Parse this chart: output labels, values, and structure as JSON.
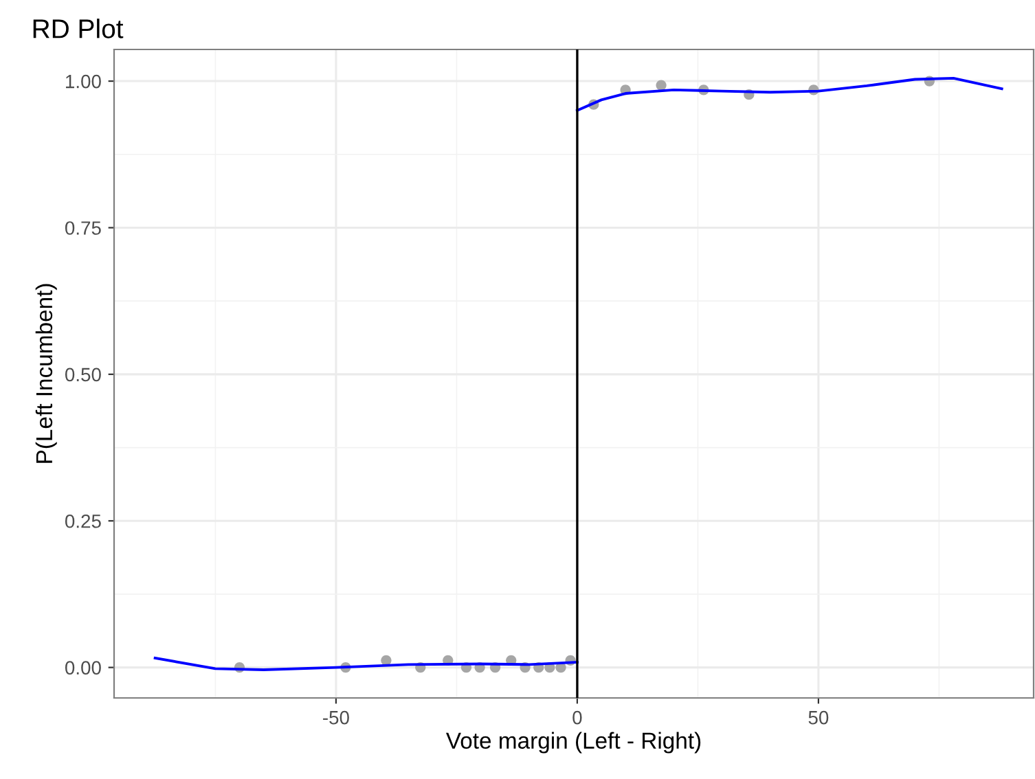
{
  "chart_data": {
    "type": "scatter",
    "title": "RD Plot",
    "xlabel": "Vote margin (Left - Right)",
    "ylabel": "P(Left Incumbent)",
    "xlim": [
      -96,
      94.6
    ],
    "ylim": [
      -0.052,
      1.054
    ],
    "xticks": [
      {
        "value": -75,
        "label": null
      },
      -50,
      {
        "value": -25,
        "label": null
      },
      0,
      {
        "value": 25,
        "label": null
      },
      50,
      {
        "value": 75,
        "label": null
      }
    ],
    "yticks": [
      {
        "value": 0,
        "label": "0.00"
      },
      {
        "value": 0.125,
        "label": null
      },
      {
        "value": 0.25,
        "label": "0.25"
      },
      {
        "value": 0.375,
        "label": null
      },
      {
        "value": 0.5,
        "label": "0.50"
      },
      {
        "value": 0.625,
        "label": null
      },
      {
        "value": 0.75,
        "label": "0.75"
      },
      {
        "value": 0.875,
        "label": null
      },
      {
        "value": 1,
        "label": "1.00"
      }
    ],
    "grid": true,
    "marker": "circle",
    "ref_lines": [
      {
        "axis": "x",
        "value": 0,
        "color": "#000000"
      }
    ],
    "series": [
      {
        "color": "#a6a6a6",
        "x": [
          -70,
          -48,
          -39.6,
          -32.5,
          -26.8,
          -23,
          -20.2,
          -17,
          -13.7,
          -10.8,
          -8,
          -5.7,
          -3.4,
          -1.4,
          3.4,
          10,
          17.4,
          26.2,
          35.6,
          49,
          73
        ],
        "values": [
          0,
          0,
          0.012,
          0,
          0.012,
          0,
          0,
          0,
          0.012,
          0,
          0,
          0,
          0,
          0.012,
          0.96,
          0.985,
          0.993,
          0.985,
          0.977,
          0.985,
          1.0
        ]
      },
      {
        "type": "line",
        "color": "#0000ff",
        "marker": "none",
        "x": [
          -87.5,
          -75,
          -65,
          -50,
          -35,
          -20,
          -10,
          0
        ],
        "values": [
          0.016,
          -0.002,
          -0.004,
          0.0,
          0.005,
          0.006,
          0.005,
          0.009
        ]
      },
      {
        "type": "line",
        "color": "#0000ff",
        "marker": "none",
        "x": [
          0,
          5,
          10,
          20,
          30,
          40,
          50,
          60,
          70,
          78,
          88
        ],
        "values": [
          0.95,
          0.968,
          0.979,
          0.985,
          0.983,
          0.981,
          0.983,
          0.992,
          1.003,
          1.005,
          0.987
        ]
      }
    ]
  }
}
